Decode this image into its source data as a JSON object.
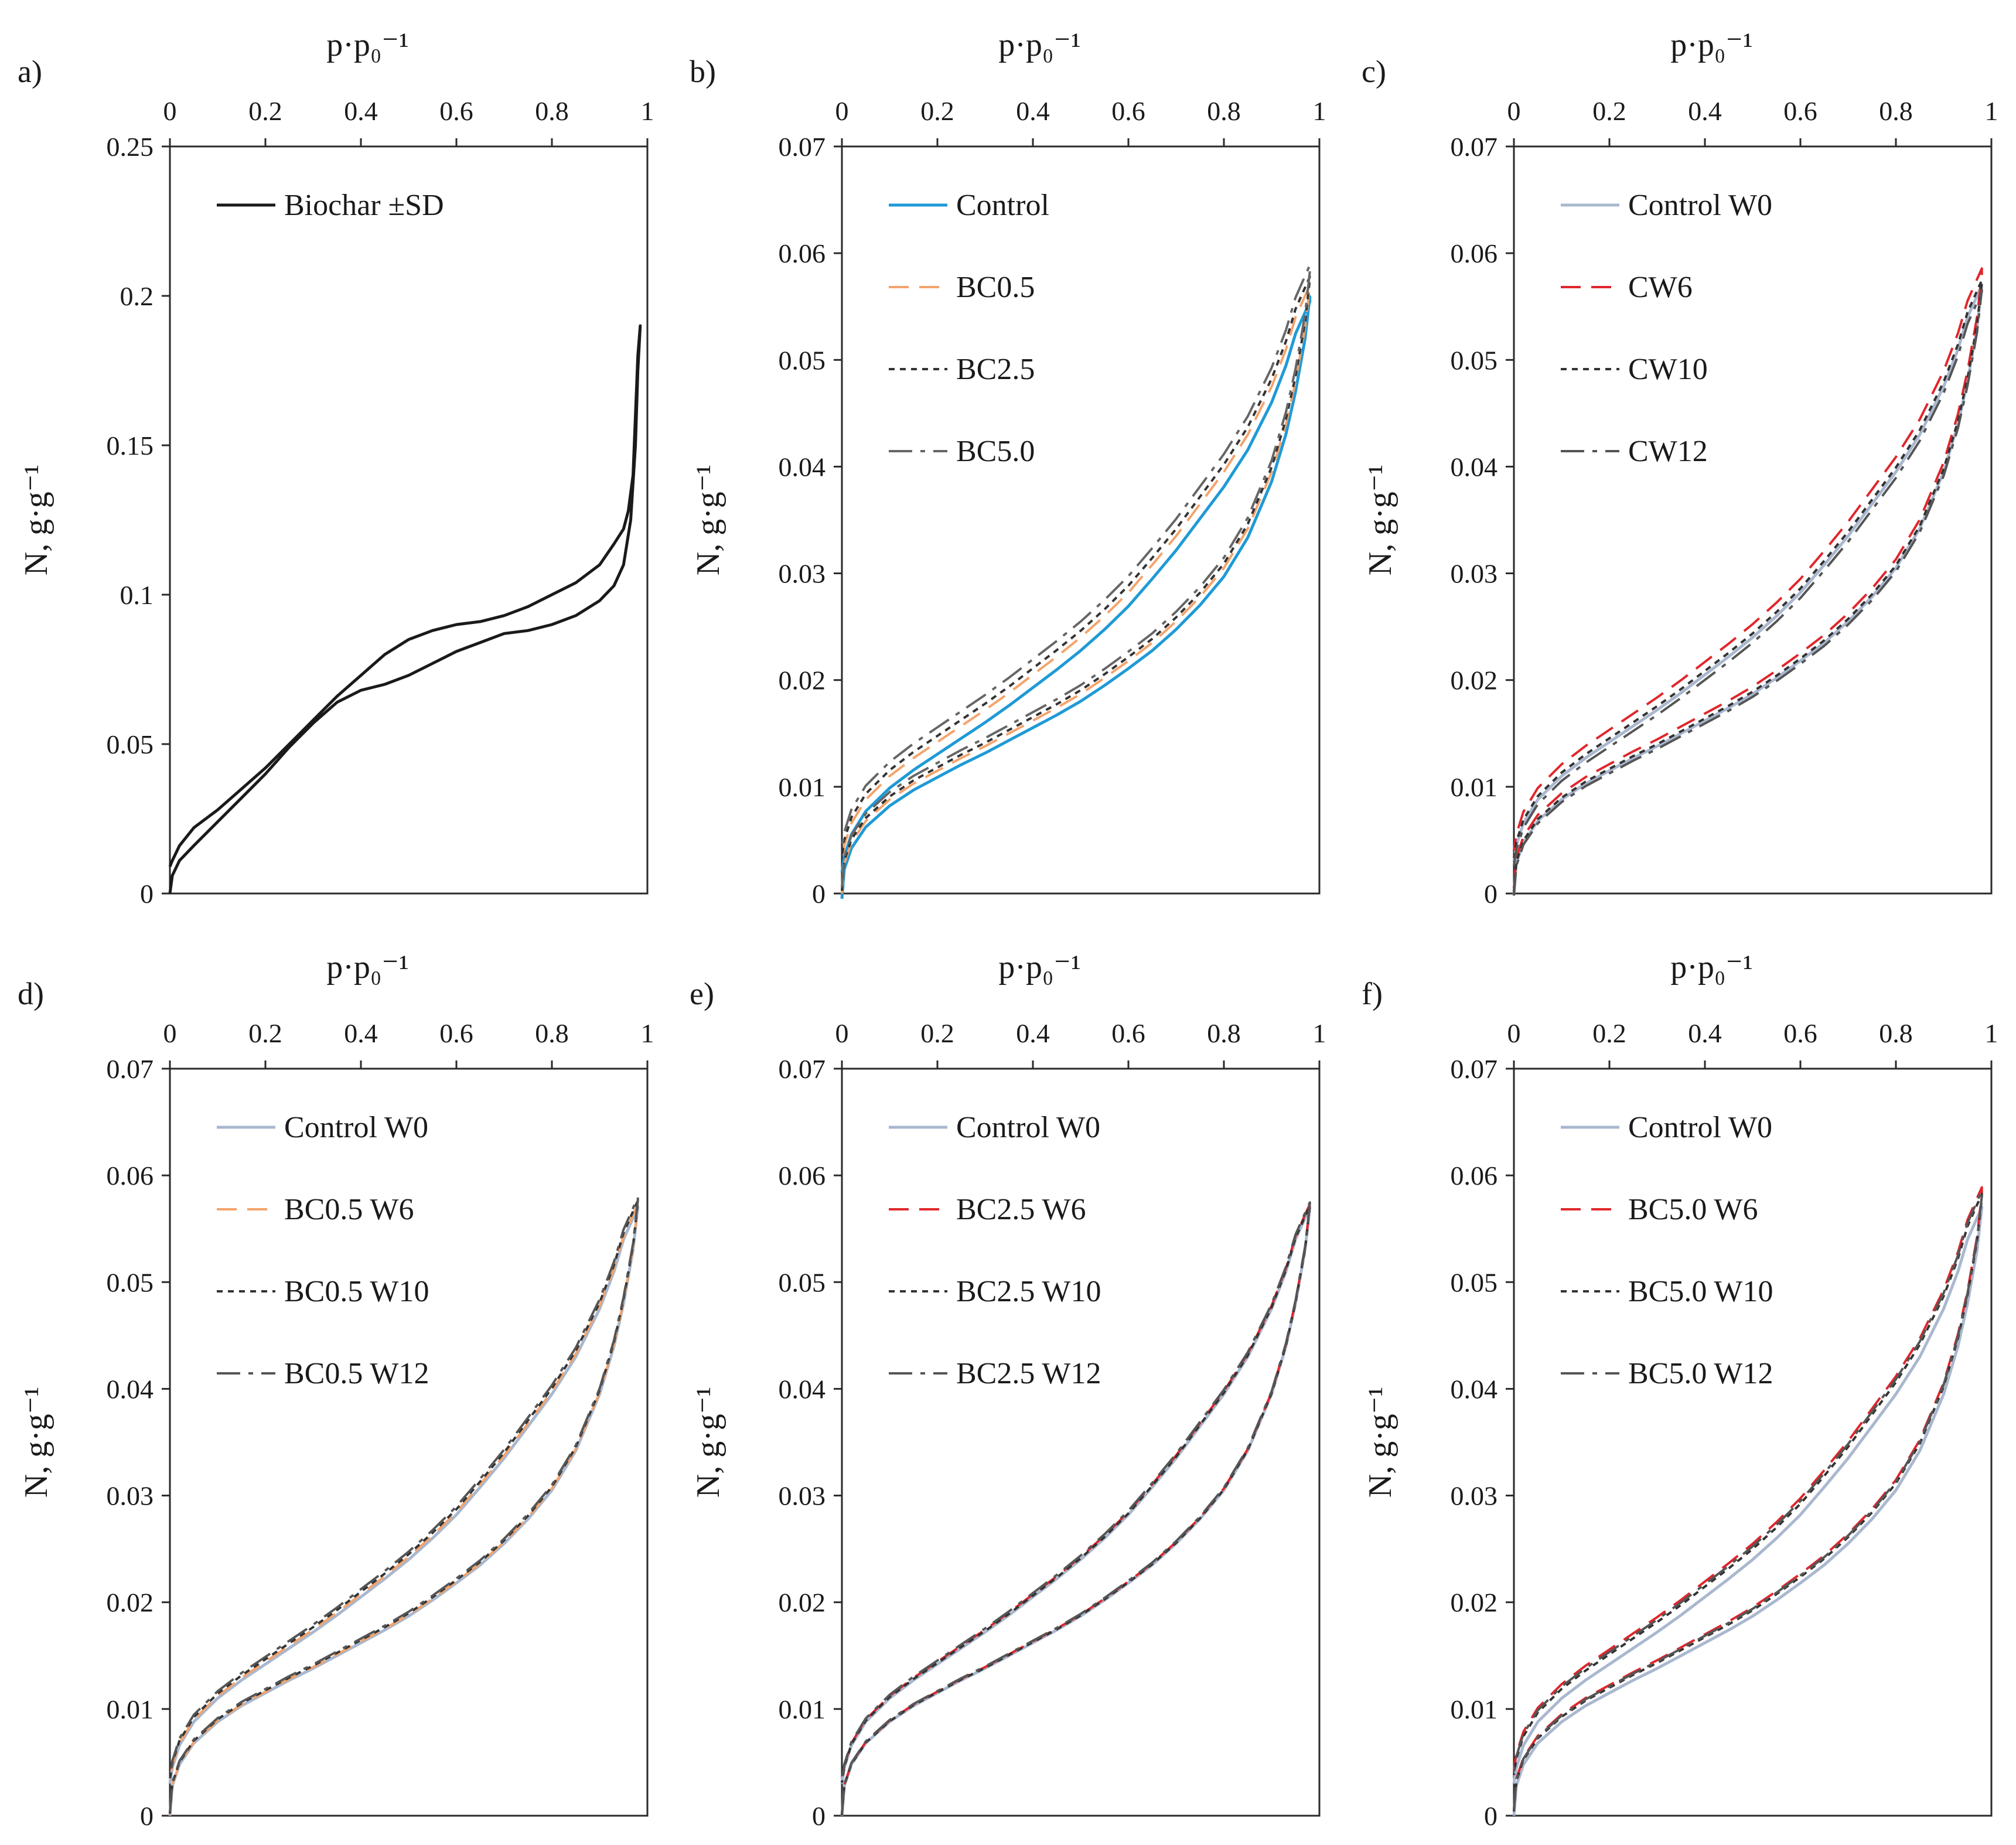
{
  "chart_data": [
    {
      "id": "a",
      "type": "line",
      "panel_label": "a)",
      "xlabel": "p·p₀⁻¹",
      "ylabel": "N, g·g⁻¹",
      "xlim": [
        0,
        1
      ],
      "ylim": [
        0,
        0.25
      ],
      "x_ticks": [
        0,
        0.2,
        0.4,
        0.6,
        0.8,
        1
      ],
      "x_tick_labels": [
        "0",
        "0.2",
        "0.4",
        "0.6",
        "0.8",
        "1"
      ],
      "y_ticks": [
        0,
        0.05,
        0.1,
        0.15,
        0.2,
        0.25
      ],
      "y_tick_labels": [
        "0",
        "0.05",
        "0.1",
        "0.15",
        "0.2",
        "0.25"
      ],
      "legend": [
        "Biochar ±SD"
      ],
      "series": [
        {
          "name": "Biochar ±SD",
          "style": "solid",
          "color": "#1a1a1a",
          "points": [
            [
              0,
              0
            ],
            [
              0.005,
              0.006
            ],
            [
              0.02,
              0.011
            ],
            [
              0.05,
              0.016
            ],
            [
              0.1,
              0.024
            ],
            [
              0.15,
              0.032
            ],
            [
              0.2,
              0.04
            ],
            [
              0.25,
              0.049
            ],
            [
              0.3,
              0.057
            ],
            [
              0.35,
              0.064
            ],
            [
              0.4,
              0.068
            ],
            [
              0.45,
              0.07
            ],
            [
              0.5,
              0.073
            ],
            [
              0.55,
              0.077
            ],
            [
              0.6,
              0.081
            ],
            [
              0.65,
              0.084
            ],
            [
              0.7,
              0.087
            ],
            [
              0.75,
              0.088
            ],
            [
              0.8,
              0.09
            ],
            [
              0.85,
              0.093
            ],
            [
              0.9,
              0.098
            ],
            [
              0.93,
              0.103
            ],
            [
              0.95,
              0.11
            ],
            [
              0.965,
              0.125
            ],
            [
              0.975,
              0.15
            ],
            [
              0.98,
              0.175
            ],
            [
              0.985,
              0.19
            ],
            [
              0.98,
              0.18
            ],
            [
              0.975,
              0.16
            ],
            [
              0.97,
              0.14
            ],
            [
              0.96,
              0.128
            ],
            [
              0.95,
              0.122
            ],
            [
              0.93,
              0.117
            ],
            [
              0.9,
              0.11
            ],
            [
              0.85,
              0.104
            ],
            [
              0.8,
              0.1
            ],
            [
              0.75,
              0.096
            ],
            [
              0.7,
              0.093
            ],
            [
              0.65,
              0.091
            ],
            [
              0.6,
              0.09
            ],
            [
              0.55,
              0.088
            ],
            [
              0.5,
              0.085
            ],
            [
              0.45,
              0.08
            ],
            [
              0.4,
              0.073
            ],
            [
              0.35,
              0.066
            ],
            [
              0.3,
              0.058
            ],
            [
              0.25,
              0.05
            ],
            [
              0.2,
              0.042
            ],
            [
              0.15,
              0.035
            ],
            [
              0.1,
              0.028
            ],
            [
              0.05,
              0.022
            ],
            [
              0.02,
              0.016
            ],
            [
              0.005,
              0.011
            ],
            [
              0,
              0.009
            ]
          ]
        }
      ]
    },
    {
      "id": "b",
      "type": "line",
      "panel_label": "b)",
      "xlabel": "p·p₀⁻¹",
      "ylabel": "N, g·g⁻¹",
      "xlim": [
        0,
        1
      ],
      "ylim": [
        0,
        0.07
      ],
      "x_ticks": [
        0,
        0.2,
        0.4,
        0.6,
        0.8,
        1
      ],
      "x_tick_labels": [
        "0",
        "0.2",
        "0.4",
        "0.6",
        "0.8",
        "1"
      ],
      "y_ticks": [
        0,
        0.01,
        0.02,
        0.03,
        0.04,
        0.05,
        0.06,
        0.07
      ],
      "y_tick_labels": [
        "0",
        "0.01",
        "0.02",
        "0.03",
        "0.04",
        "0.05",
        "0.06",
        "0.07"
      ],
      "legend": [
        "Control",
        "BC0.5",
        "BC2.5",
        "BC5.0"
      ],
      "series": [
        {
          "name": "Control",
          "style": "solid",
          "color": "#1f9ad6",
          "dy": -0.001,
          "dx_end": 0
        },
        {
          "name": "BC0.5",
          "style": "dash",
          "color": "#f4a36b",
          "dy": 0.0,
          "dx_end": 0.005
        },
        {
          "name": "BC2.5",
          "style": "dot",
          "color": "#333333",
          "dy": 0.0005,
          "dx_end": 0
        },
        {
          "name": "BC5.0",
          "style": "dashdot",
          "color": "#666666",
          "dy": 0.0012,
          "dx_end": 0
        }
      ]
    },
    {
      "id": "c",
      "type": "line",
      "panel_label": "c)",
      "xlabel": "p·p₀⁻¹",
      "ylabel": "N, g·g⁻¹",
      "xlim": [
        0,
        1
      ],
      "ylim": [
        0,
        0.07
      ],
      "x_ticks": [
        0,
        0.2,
        0.4,
        0.6,
        0.8,
        1
      ],
      "x_tick_labels": [
        "0",
        "0.2",
        "0.4",
        "0.6",
        "0.8",
        "1"
      ],
      "y_ticks": [
        0,
        0.01,
        0.02,
        0.03,
        0.04,
        0.05,
        0.06,
        0.07
      ],
      "y_tick_labels": [
        "0",
        "0.01",
        "0.02",
        "0.03",
        "0.04",
        "0.05",
        "0.06",
        "0.07"
      ],
      "legend": [
        "Control W0",
        "CW6",
        "CW10",
        "CW12"
      ],
      "series": [
        {
          "name": "Control W0",
          "style": "solid",
          "color": "#a9b8cf",
          "dy": 0.0,
          "dx_end": 0
        },
        {
          "name": "CW6",
          "style": "dash",
          "color": "#e0262b",
          "dy": 0.001,
          "dx_end": 0
        },
        {
          "name": "CW10",
          "style": "dot",
          "color": "#333333",
          "dy": 0.0003,
          "dx_end": 0
        },
        {
          "name": "CW12",
          "style": "dashdot",
          "color": "#555555",
          "dy": -0.0004,
          "dx_end": 0
        }
      ]
    },
    {
      "id": "d",
      "type": "line",
      "panel_label": "d)",
      "xlabel": "p·p₀⁻¹",
      "ylabel": "N, g·g⁻¹",
      "xlim": [
        0,
        1
      ],
      "ylim": [
        0,
        0.07
      ],
      "x_ticks": [
        0,
        0.2,
        0.4,
        0.6,
        0.8,
        1
      ],
      "x_tick_labels": [
        "0",
        "0.2",
        "0.4",
        "0.6",
        "0.8",
        "1"
      ],
      "y_ticks": [
        0,
        0.01,
        0.02,
        0.03,
        0.04,
        0.05,
        0.06,
        0.07
      ],
      "y_tick_labels": [
        "0",
        "0.01",
        "0.02",
        "0.03",
        "0.04",
        "0.05",
        "0.06",
        "0.07"
      ],
      "legend": [
        "Control W0",
        "BC0.5 W6",
        "BC0.5 W10",
        "BC0.5 W12"
      ],
      "series": [
        {
          "name": "Control W0",
          "style": "solid",
          "color": "#a9b8cf",
          "dy": 0.0,
          "dx_end": 0
        },
        {
          "name": "BC0.5 W6",
          "style": "dash",
          "color": "#f4a36b",
          "dy": 0.0002,
          "dx_end": 0
        },
        {
          "name": "BC0.5 W10",
          "style": "dot",
          "color": "#333333",
          "dy": 0.0004,
          "dx_end": 0
        },
        {
          "name": "BC0.5 W12",
          "style": "dashdot",
          "color": "#555555",
          "dy": 0.0006,
          "dx_end": 0
        }
      ]
    },
    {
      "id": "e",
      "type": "line",
      "panel_label": "e)",
      "xlabel": "p·p₀⁻¹",
      "ylabel": "N, g·g⁻¹",
      "xlim": [
        0,
        1
      ],
      "ylim": [
        0,
        0.07
      ],
      "x_ticks": [
        0,
        0.2,
        0.4,
        0.6,
        0.8,
        1
      ],
      "x_tick_labels": [
        "0",
        "0.2",
        "0.4",
        "0.6",
        "0.8",
        "1"
      ],
      "y_ticks": [
        0,
        0.01,
        0.02,
        0.03,
        0.04,
        0.05,
        0.06,
        0.07
      ],
      "y_tick_labels": [
        "0",
        "0.01",
        "0.02",
        "0.03",
        "0.04",
        "0.05",
        "0.06",
        "0.07"
      ],
      "legend": [
        "Control W0",
        "BC2.5 W6",
        "BC2.5 W10",
        "BC2.5 W12"
      ],
      "series": [
        {
          "name": "Control W0",
          "style": "solid",
          "color": "#a9b8cf",
          "dy": 0.0,
          "dx_end": 0
        },
        {
          "name": "BC2.5 W6",
          "style": "dash",
          "color": "#e0262b",
          "dy": 0.0002,
          "dx_end": 0
        },
        {
          "name": "BC2.5 W10",
          "style": "dot",
          "color": "#333333",
          "dy": 0.0001,
          "dx_end": 0
        },
        {
          "name": "BC2.5 W12",
          "style": "dashdot",
          "color": "#555555",
          "dy": 0.0003,
          "dx_end": 0
        }
      ]
    },
    {
      "id": "f",
      "type": "line",
      "panel_label": "f)",
      "xlabel": "p·p₀⁻¹",
      "ylabel": "N, g·g⁻¹",
      "xlim": [
        0,
        1
      ],
      "ylim": [
        0,
        0.07
      ],
      "x_ticks": [
        0,
        0.2,
        0.4,
        0.6,
        0.8,
        1
      ],
      "x_tick_labels": [
        "0",
        "0.2",
        "0.4",
        "0.6",
        "0.8",
        "1"
      ],
      "y_ticks": [
        0,
        0.01,
        0.02,
        0.03,
        0.04,
        0.05,
        0.06,
        0.07
      ],
      "y_tick_labels": [
        "0",
        "0.01",
        "0.02",
        "0.03",
        "0.04",
        "0.05",
        "0.06",
        "0.07"
      ],
      "legend": [
        "Control W0",
        "BC5.0 W6",
        "BC5.0 W10",
        "BC5.0 W12"
      ],
      "series": [
        {
          "name": "Control W0",
          "style": "solid",
          "color": "#a9b8cf",
          "dy": 0.0,
          "dx_end": 0
        },
        {
          "name": "BC5.0 W6",
          "style": "dash",
          "color": "#e0262b",
          "dy": 0.0012,
          "dx_end": 0
        },
        {
          "name": "BC5.0 W10",
          "style": "dot",
          "color": "#333333",
          "dy": 0.0008,
          "dx_end": 0
        },
        {
          "name": "BC5.0 W12",
          "style": "dashdot",
          "color": "#555555",
          "dy": 0.001,
          "dx_end": 0
        }
      ]
    }
  ],
  "base_isotherm": {
    "adsorption": [
      [
        0,
        0
      ],
      [
        0.005,
        0.0028
      ],
      [
        0.02,
        0.0048
      ],
      [
        0.05,
        0.0068
      ],
      [
        0.1,
        0.0088
      ],
      [
        0.15,
        0.0103
      ],
      [
        0.2,
        0.0115
      ],
      [
        0.25,
        0.0127
      ],
      [
        0.3,
        0.0138
      ],
      [
        0.35,
        0.015
      ],
      [
        0.4,
        0.0162
      ],
      [
        0.45,
        0.0174
      ],
      [
        0.5,
        0.0187
      ],
      [
        0.55,
        0.0202
      ],
      [
        0.6,
        0.0218
      ],
      [
        0.65,
        0.0235
      ],
      [
        0.7,
        0.0255
      ],
      [
        0.75,
        0.0278
      ],
      [
        0.8,
        0.0305
      ],
      [
        0.85,
        0.0342
      ],
      [
        0.9,
        0.0395
      ],
      [
        0.93,
        0.044
      ],
      [
        0.95,
        0.048
      ],
      [
        0.97,
        0.053
      ],
      [
        0.98,
        0.057
      ]
    ],
    "desorption": [
      [
        0.98,
        0.057
      ],
      [
        0.97,
        0.056
      ],
      [
        0.95,
        0.054
      ],
      [
        0.93,
        0.051
      ],
      [
        0.9,
        0.0475
      ],
      [
        0.85,
        0.043
      ],
      [
        0.8,
        0.0395
      ],
      [
        0.75,
        0.0365
      ],
      [
        0.7,
        0.0335
      ],
      [
        0.65,
        0.0308
      ],
      [
        0.6,
        0.0282
      ],
      [
        0.55,
        0.026
      ],
      [
        0.5,
        0.024
      ],
      [
        0.45,
        0.0222
      ],
      [
        0.4,
        0.0205
      ],
      [
        0.35,
        0.0188
      ],
      [
        0.3,
        0.0172
      ],
      [
        0.25,
        0.0157
      ],
      [
        0.2,
        0.0142
      ],
      [
        0.15,
        0.0127
      ],
      [
        0.1,
        0.011
      ],
      [
        0.05,
        0.0088
      ],
      [
        0.02,
        0.0066
      ],
      [
        0.005,
        0.0045
      ],
      [
        0,
        0.003
      ]
    ]
  }
}
